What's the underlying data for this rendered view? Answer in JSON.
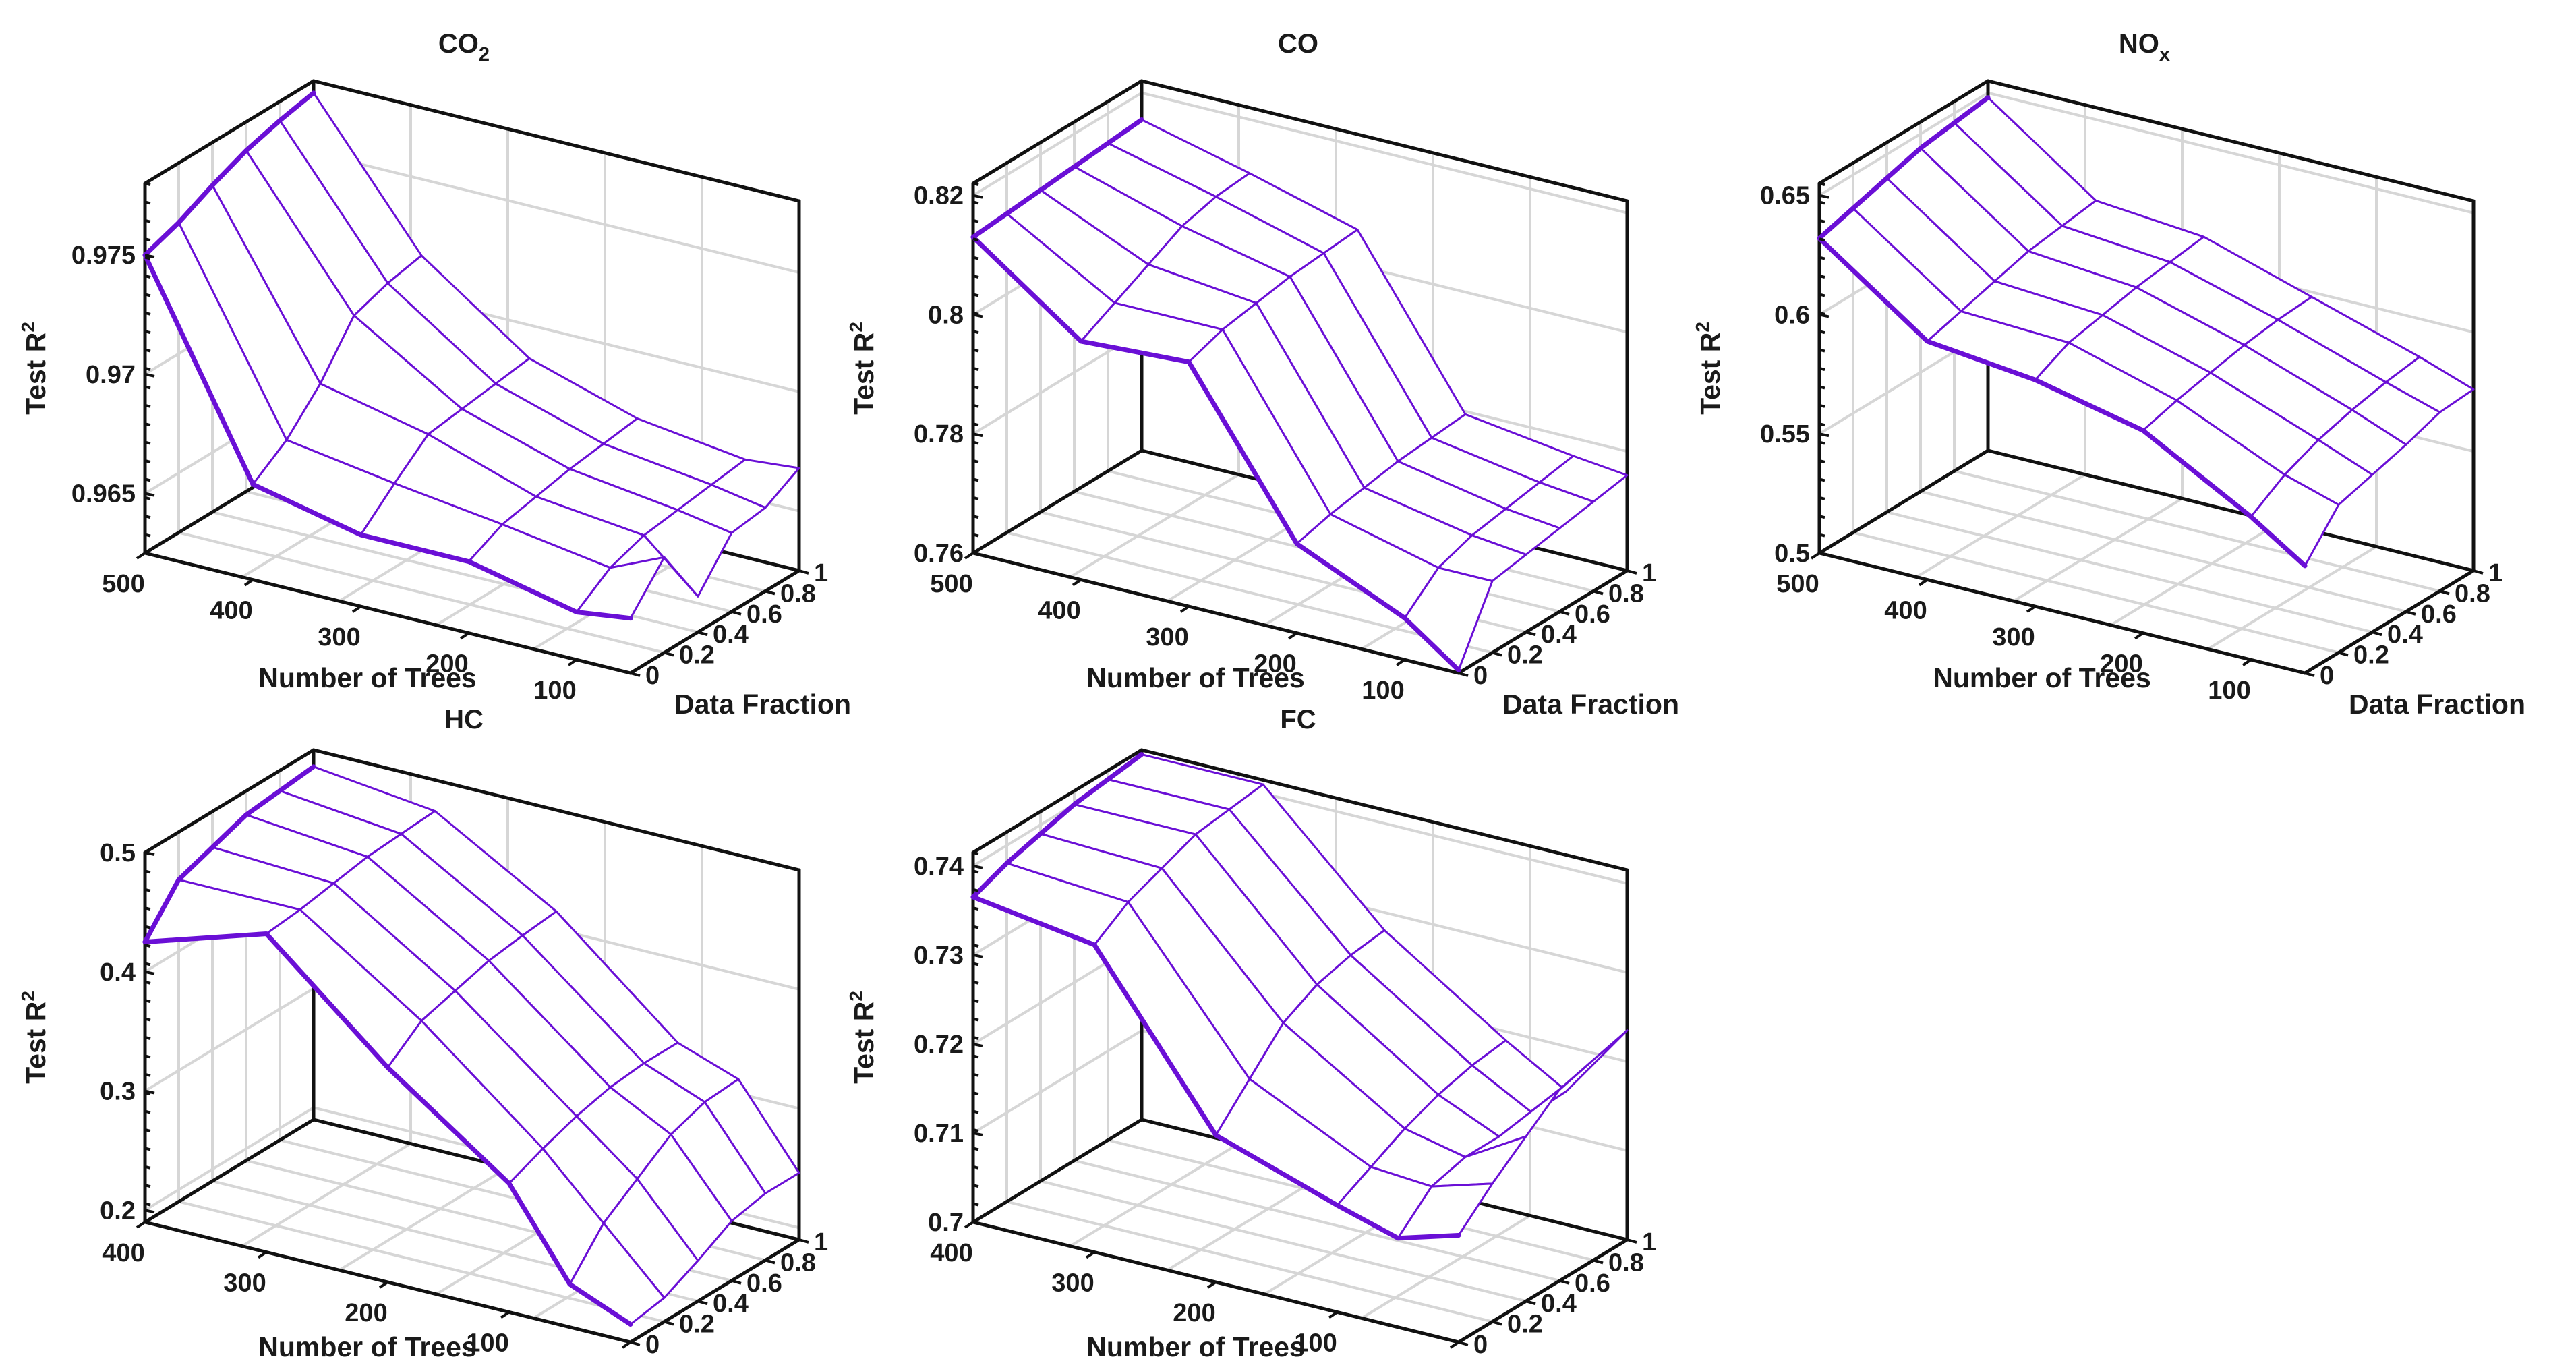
{
  "figure": {
    "colors": {
      "mesh": "#6a0fd6",
      "box": "#111111",
      "grid": "#d6d6d6"
    },
    "axis_labels": {
      "x": "Number of Trees",
      "y": "Data Fraction",
      "z_main": "Test R",
      "z_sup": "2"
    }
  },
  "chart_data": [
    {
      "id": "co2",
      "type": "surface",
      "title": "CO",
      "title_sub": "2",
      "title_sup": "",
      "x_ticks": [
        "500",
        "400",
        "300",
        "200",
        "100"
      ],
      "y_ticks": [
        "0",
        "0.2",
        "0.4",
        "0.6",
        "0.8",
        "1"
      ],
      "z_ticks": [
        "0.965",
        "0.97",
        "0.975"
      ],
      "x": [
        500,
        400,
        300,
        200,
        100,
        50
      ],
      "y": [
        0,
        0.2,
        0.4,
        0.6,
        0.8,
        1.0
      ],
      "zlim": [
        0.9625,
        0.978
      ],
      "z": [
        [
          0.975,
          0.9755,
          0.9762,
          0.9768,
          0.9772,
          0.9775
        ],
        [
          0.9665,
          0.9675,
          0.969,
          0.971,
          0.9715,
          0.9718
        ],
        [
          0.9655,
          0.9668,
          0.968,
          0.9682,
          0.9684,
          0.9686
        ],
        [
          0.9655,
          0.9662,
          0.9665,
          0.9668,
          0.967,
          0.9672
        ],
        [
          0.9645,
          0.9655,
          0.966,
          0.9662,
          0.9664,
          0.9666
        ],
        [
          0.9648,
          0.9665,
          0.964,
          0.9658,
          0.966,
          0.9668
        ]
      ]
    },
    {
      "id": "co",
      "type": "surface",
      "title": "CO",
      "title_sub": "",
      "title_sup": "",
      "x_ticks": [
        "500",
        "400",
        "300",
        "200",
        "100"
      ],
      "y_ticks": [
        "0",
        "0.2",
        "0.4",
        "0.6",
        "0.8",
        "1"
      ],
      "z_ticks": [
        "0.76",
        "0.78",
        "0.8",
        "0.82"
      ],
      "x": [
        500,
        400,
        300,
        200,
        100,
        50
      ],
      "y": [
        0,
        0.2,
        0.4,
        0.6,
        0.8,
        1.0
      ],
      "zlim": [
        0.76,
        0.822
      ],
      "z": [
        [
          0.813,
          0.8135,
          0.814,
          0.8145,
          0.815,
          0.8155
        ],
        [
          0.8,
          0.803,
          0.806,
          0.809,
          0.8105,
          0.811
        ],
        [
          0.801,
          0.803,
          0.804,
          0.805,
          0.8055,
          0.806
        ],
        [
          0.775,
          0.7765,
          0.7775,
          0.7785,
          0.779,
          0.7795
        ],
        [
          0.767,
          0.772,
          0.774,
          0.775,
          0.776,
          0.777
        ],
        [
          0.7605,
          0.772,
          0.773,
          0.774,
          0.775,
          0.776
        ]
      ]
    },
    {
      "id": "nox",
      "type": "surface",
      "title": "NO",
      "title_sub": "x",
      "title_sup": "",
      "x_ticks": [
        "500",
        "400",
        "300",
        "200",
        "100"
      ],
      "y_ticks": [
        "0",
        "0.2",
        "0.4",
        "0.6",
        "0.8",
        "1"
      ],
      "z_ticks": [
        "0.5",
        "0.55",
        "0.6",
        "0.65"
      ],
      "x": [
        500,
        400,
        300,
        200,
        100,
        50
      ],
      "y": [
        0,
        0.2,
        0.4,
        0.6,
        0.8,
        1.0
      ],
      "zlim": [
        0.5,
        0.655
      ],
      "z": [
        [
          0.632,
          0.636,
          0.64,
          0.644,
          0.646,
          0.648
        ],
        [
          0.6,
          0.604,
          0.608,
          0.612,
          0.614,
          0.616
        ],
        [
          0.595,
          0.602,
          0.605,
          0.608,
          0.61,
          0.612
        ],
        [
          0.585,
          0.589,
          0.592,
          0.595,
          0.597,
          0.598
        ],
        [
          0.56,
          0.569,
          0.575,
          0.579,
          0.582,
          0.584
        ],
        [
          0.545,
          0.562,
          0.566,
          0.57,
          0.575,
          0.576
        ]
      ]
    },
    {
      "id": "hc",
      "type": "surface",
      "title": "HC",
      "title_sub": "",
      "title_sup": "",
      "x_ticks": [
        "400",
        "300",
        "200",
        "100",
        "0"
      ],
      "y_ticks": [
        "0",
        "0.2",
        "0.4",
        "0.6",
        "0.8",
        "1"
      ],
      "z_ticks": [
        "0.2",
        "0.3",
        "0.4",
        "0.5"
      ],
      "x": [
        400,
        300,
        200,
        100,
        50,
        0
      ],
      "y": [
        0,
        0.2,
        0.4,
        0.6,
        0.8,
        1.0
      ],
      "zlim": [
        0.19,
        0.5
      ],
      "z": [
        [
          0.425,
          0.46,
          0.47,
          0.48,
          0.483,
          0.486
        ],
        [
          0.457,
          0.46,
          0.465,
          0.47,
          0.472,
          0.474
        ],
        [
          0.37,
          0.392,
          0.4,
          0.408,
          0.412,
          0.415
        ],
        [
          0.298,
          0.31,
          0.32,
          0.327,
          0.33,
          0.33
        ],
        [
          0.226,
          0.26,
          0.28,
          0.3,
          0.31,
          0.312
        ],
        [
          0.205,
          0.21,
          0.224,
          0.24,
          0.246,
          0.246
        ]
      ]
    },
    {
      "id": "fc",
      "type": "surface",
      "title": "FC",
      "title_sub": "",
      "title_sup": "",
      "x_ticks": [
        "400",
        "300",
        "200",
        "100",
        "0"
      ],
      "y_ticks": [
        "0",
        "0.2",
        "0.4",
        "0.6",
        "0.8",
        "1"
      ],
      "z_ticks": [
        "0.7",
        "0.71",
        "0.72",
        "0.73",
        "0.74"
      ],
      "x": [
        400,
        300,
        200,
        100,
        50,
        0
      ],
      "y": [
        0,
        0.2,
        0.4,
        0.6,
        0.8,
        1.0
      ],
      "zlim": [
        0.7,
        0.7415
      ],
      "z": [
        [
          0.7365,
          0.738,
          0.739,
          0.74,
          0.7405,
          0.741
        ],
        [
          0.7345,
          0.737,
          0.7385,
          0.74,
          0.7405,
          0.741
        ],
        [
          0.7165,
          0.7205,
          0.7245,
          0.7265,
          0.7275,
          0.728
        ],
        [
          0.712,
          0.714,
          0.716,
          0.7175,
          0.7185,
          0.719
        ],
        [
          0.71,
          0.7135,
          0.7145,
          0.7145,
          0.7148,
          0.715
        ],
        [
          0.712,
          0.7155,
          0.7185,
          0.7215,
          0.7225,
          0.7235
        ]
      ]
    }
  ]
}
